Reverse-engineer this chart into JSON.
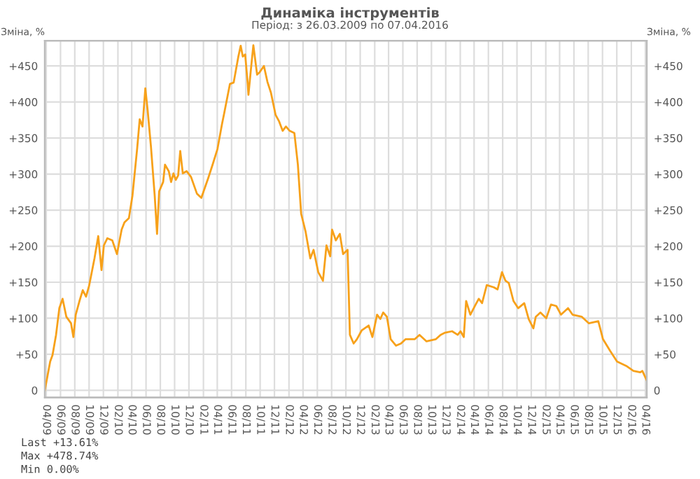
{
  "chart_data": {
    "type": "line",
    "title": "Динаміка інструментів",
    "subtitle": "Період: з 26.03.2009 по 07.04.2016",
    "ylabel": "Зміна, %",
    "y2label": "Зміна, %",
    "x": [
      "2009-03-26",
      "2009-04-18",
      "2009-04-28",
      "2009-05-13",
      "2009-05-27",
      "2009-06-10",
      "2009-06-26",
      "2009-07-16",
      "2009-07-26",
      "2009-08-05",
      "2009-08-21",
      "2009-09-04",
      "2009-09-18",
      "2009-10-01",
      "2009-10-24",
      "2009-11-09",
      "2009-11-23",
      "2009-12-03",
      "2009-12-18",
      "2010-01-08",
      "2010-01-28",
      "2010-02-17",
      "2010-03-01",
      "2010-03-20",
      "2010-04-04",
      "2010-04-24",
      "2010-05-05",
      "2010-05-17",
      "2010-05-29",
      "2010-06-08",
      "2010-06-22",
      "2010-07-08",
      "2010-07-18",
      "2010-07-27",
      "2010-08-13",
      "2010-08-21",
      "2010-09-06",
      "2010-09-16",
      "2010-09-26",
      "2010-10-06",
      "2010-10-16",
      "2010-10-25",
      "2010-11-05",
      "2010-11-21",
      "2010-12-10",
      "2011-01-04",
      "2011-01-23",
      "2011-02-22",
      "2011-03-12",
      "2011-04-02",
      "2011-04-21",
      "2011-05-01",
      "2011-05-25",
      "2011-06-10",
      "2011-06-30",
      "2011-07-10",
      "2011-07-19",
      "2011-07-29",
      "2011-08-09",
      "2011-08-12",
      "2011-08-24",
      "2011-09-02",
      "2011-09-18",
      "2011-09-28",
      "2011-10-17",
      "2011-11-01",
      "2011-11-16",
      "2011-12-06",
      "2011-12-21",
      "2012-01-05",
      "2012-01-19",
      "2012-02-04",
      "2012-02-24",
      "2012-03-10",
      "2012-03-24",
      "2012-04-12",
      "2012-05-02",
      "2012-05-16",
      "2012-06-05",
      "2012-06-25",
      "2012-07-10",
      "2012-07-26",
      "2012-08-03",
      "2012-08-19",
      "2012-09-05",
      "2012-09-19",
      "2012-10-08",
      "2012-10-18",
      "2012-11-03",
      "2012-11-17",
      "2012-12-07",
      "2013-01-06",
      "2013-01-22",
      "2013-02-11",
      "2013-02-25",
      "2013-03-09",
      "2013-03-25",
      "2013-04-10",
      "2013-05-03",
      "2013-05-24",
      "2013-06-13",
      "2013-07-22",
      "2013-08-11",
      "2013-09-10",
      "2013-10-20",
      "2013-11-09",
      "2013-11-28",
      "2013-12-28",
      "2014-01-21",
      "2014-02-02",
      "2014-02-16",
      "2014-02-26",
      "2014-03-16",
      "2014-04-06",
      "2014-04-21",
      "2014-05-05",
      "2014-05-25",
      "2014-06-24",
      "2014-07-10",
      "2014-07-29",
      "2014-08-13",
      "2014-08-27",
      "2014-09-16",
      "2014-10-06",
      "2014-11-01",
      "2014-11-20",
      "2014-12-10",
      "2014-12-20",
      "2015-01-09",
      "2015-02-03",
      "2015-02-23",
      "2015-03-18",
      "2015-04-07",
      "2015-05-07",
      "2015-05-26",
      "2015-07-05",
      "2015-08-04",
      "2015-09-13",
      "2015-10-03",
      "2015-11-02",
      "2015-12-02",
      "2016-01-10",
      "2016-02-10",
      "2016-03-10",
      "2016-03-19",
      "2016-04-07"
    ],
    "series": [
      {
        "color": "#f7a11a",
        "values": [
          0,
          40,
          49,
          77,
          114,
          127,
          102,
          93,
          74,
          105,
          124,
          139,
          130,
          145,
          183,
          214,
          167,
          201,
          211,
          208,
          189,
          223,
          233,
          239,
          270,
          335,
          376,
          366,
          419,
          388,
          338,
          270,
          217,
          276,
          289,
          313,
          304,
          289,
          301,
          292,
          298,
          332,
          301,
          304,
          296,
          273,
          267,
          295,
          313,
          335,
          369,
          385,
          425,
          427,
          463,
          478,
          463,
          466,
          425,
          410,
          450,
          478.74,
          438,
          441,
          450,
          428,
          413,
          382,
          373,
          360,
          366,
          360,
          357,
          313,
          245,
          220,
          183,
          195,
          164,
          152,
          201,
          186,
          223,
          208,
          217,
          189,
          195,
          77,
          65,
          71,
          83,
          90,
          74,
          105,
          99,
          108,
          102,
          71,
          62,
          65,
          71,
          71,
          77,
          68,
          71,
          77,
          80,
          82,
          77,
          82,
          74,
          124,
          105,
          118,
          127,
          121,
          146,
          143,
          140,
          164,
          152,
          149,
          124,
          114,
          121,
          99,
          86,
          102,
          108,
          100,
          119,
          117,
          105,
          114,
          105,
          102,
          93,
          96,
          71,
          55,
          40,
          34,
          27,
          25,
          27,
          13.61
        ]
      }
    ],
    "xlim": [
      "2009-03-26",
      "2016-04-07"
    ],
    "xticks": [
      {
        "value": "2009-04-01",
        "label": "04/09"
      },
      {
        "value": "2009-06-01",
        "label": "06/09"
      },
      {
        "value": "2009-08-01",
        "label": "08/09"
      },
      {
        "value": "2009-10-01",
        "label": "10/09"
      },
      {
        "value": "2009-12-01",
        "label": "12/09"
      },
      {
        "value": "2010-02-01",
        "label": "02/10"
      },
      {
        "value": "2010-04-01",
        "label": "04/10"
      },
      {
        "value": "2010-06-01",
        "label": "06/10"
      },
      {
        "value": "2010-08-01",
        "label": "08/10"
      },
      {
        "value": "2010-10-01",
        "label": "10/10"
      },
      {
        "value": "2010-12-01",
        "label": "12/10"
      },
      {
        "value": "2011-02-01",
        "label": "02/11"
      },
      {
        "value": "2011-04-01",
        "label": "04/11"
      },
      {
        "value": "2011-06-01",
        "label": "06/11"
      },
      {
        "value": "2011-08-01",
        "label": "08/11"
      },
      {
        "value": "2011-10-01",
        "label": "10/11"
      },
      {
        "value": "2011-12-01",
        "label": "12/11"
      },
      {
        "value": "2012-02-01",
        "label": "02/12"
      },
      {
        "value": "2012-04-01",
        "label": "04/12"
      },
      {
        "value": "2012-06-01",
        "label": "06/12"
      },
      {
        "value": "2012-08-01",
        "label": "08/12"
      },
      {
        "value": "2012-10-01",
        "label": "10/12"
      },
      {
        "value": "2012-12-01",
        "label": "12/12"
      },
      {
        "value": "2013-02-01",
        "label": "02/13"
      },
      {
        "value": "2013-04-01",
        "label": "04/13"
      },
      {
        "value": "2013-06-01",
        "label": "06/13"
      },
      {
        "value": "2013-08-01",
        "label": "08/13"
      },
      {
        "value": "2013-10-01",
        "label": "10/13"
      },
      {
        "value": "2013-12-01",
        "label": "12/13"
      },
      {
        "value": "2014-02-01",
        "label": "02/14"
      },
      {
        "value": "2014-04-01",
        "label": "04/14"
      },
      {
        "value": "2014-06-01",
        "label": "06/14"
      },
      {
        "value": "2014-08-01",
        "label": "08/14"
      },
      {
        "value": "2014-10-01",
        "label": "10/14"
      },
      {
        "value": "2014-12-01",
        "label": "12/14"
      },
      {
        "value": "2015-02-01",
        "label": "02/15"
      },
      {
        "value": "2015-04-01",
        "label": "04/15"
      },
      {
        "value": "2015-06-01",
        "label": "06/15"
      },
      {
        "value": "2015-08-01",
        "label": "08/15"
      },
      {
        "value": "2015-10-01",
        "label": "10/15"
      },
      {
        "value": "2015-12-01",
        "label": "12/15"
      },
      {
        "value": "2016-02-01",
        "label": "02/16"
      },
      {
        "value": "2016-04-01",
        "label": "04/16"
      }
    ],
    "ylim": [
      -10,
      485
    ],
    "yticks": [
      0,
      {
        "value": 50,
        "label": "+50"
      },
      {
        "value": 100,
        "label": "+100"
      },
      {
        "value": 150,
        "label": "+150"
      },
      {
        "value": 200,
        "label": "+200"
      },
      {
        "value": 250,
        "label": "+250"
      },
      {
        "value": 300,
        "label": "+300"
      },
      {
        "value": 350,
        "label": "+350"
      },
      {
        "value": 400,
        "label": "+400"
      },
      {
        "value": 450,
        "label": "+450"
      }
    ],
    "y2lim": [
      -10,
      485
    ],
    "y2ticks": [
      0,
      {
        "value": 50,
        "label": "+50"
      },
      {
        "value": 100,
        "label": "+100"
      },
      {
        "value": 150,
        "label": "+150"
      },
      {
        "value": 200,
        "label": "+200"
      },
      {
        "value": 250,
        "label": "+250"
      },
      {
        "value": 300,
        "label": "+300"
      },
      {
        "value": 350,
        "label": "+350"
      },
      {
        "value": 400,
        "label": "+400"
      },
      {
        "value": 450,
        "label": "+450"
      }
    ],
    "grid": true,
    "annotations": [
      "Last +13.61%",
      "Max +478.74%",
      "Min 0.00%"
    ]
  }
}
